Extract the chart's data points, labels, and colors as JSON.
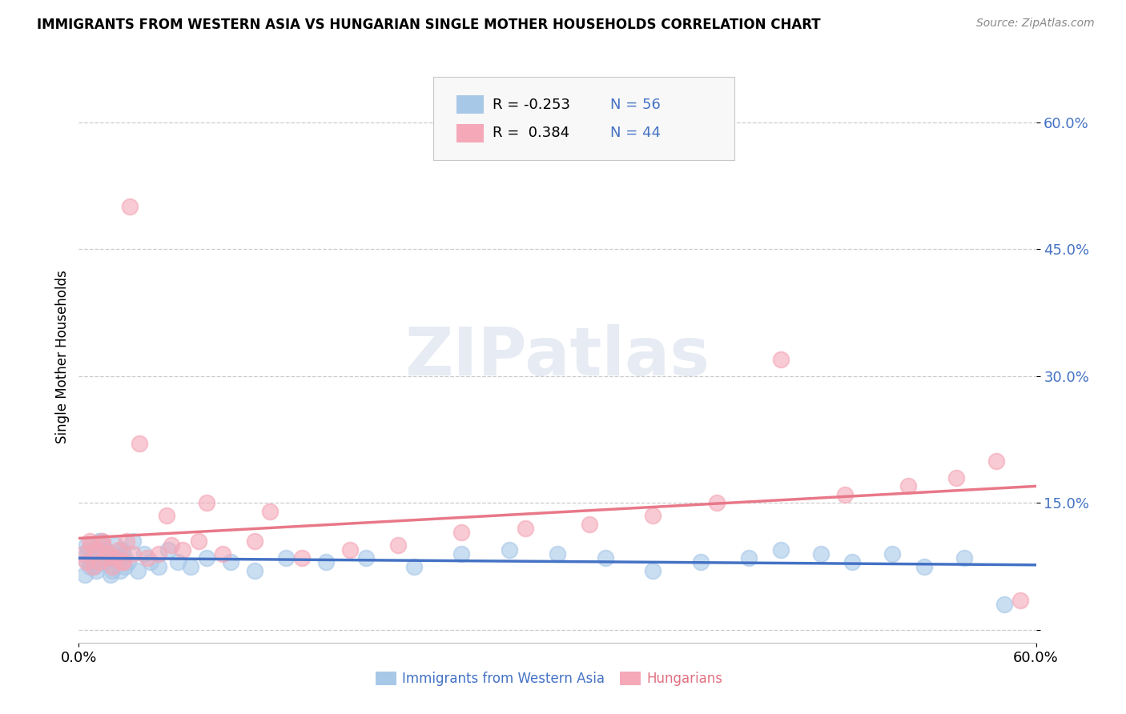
{
  "title": "IMMIGRANTS FROM WESTERN ASIA VS HUNGARIAN SINGLE MOTHER HOUSEHOLDS CORRELATION CHART",
  "source": "Source: ZipAtlas.com",
  "ylabel": "Single Mother Households",
  "xlim": [
    0.0,
    60.0
  ],
  "ylim": [
    -1.5,
    66.0
  ],
  "yticks": [
    0.0,
    15.0,
    30.0,
    45.0,
    60.0
  ],
  "ytick_labels": [
    "",
    "15.0%",
    "30.0%",
    "45.0%",
    "60.0%"
  ],
  "xticks": [
    0.0,
    60.0
  ],
  "xtick_labels": [
    "0.0%",
    "60.0%"
  ],
  "color_blue": "#a8c8e8",
  "color_pink": "#f4a8b8",
  "color_blue_text": "#4472c4",
  "color_pink_text": "#e07080",
  "trend_blue": "#4472c4",
  "trend_pink": "#e8708080",
  "watermark_color": "#d0d8e8",
  "grid_color": "#cccccc",
  "bg_color": "#ffffff",
  "legend_bg": "#f8f8f8",
  "legend_border": "#c8c8c8",
  "blue_scatter_x": [
    0.3,
    0.5,
    0.7,
    0.9,
    1.1,
    1.3,
    1.5,
    1.7,
    1.9,
    2.1,
    2.3,
    2.5,
    2.7,
    2.9,
    3.1,
    3.4,
    3.7,
    4.1,
    4.5,
    5.0,
    5.6,
    6.2,
    7.0,
    8.0,
    9.5,
    11.0,
    13.0,
    15.5,
    18.0,
    21.0,
    24.0,
    27.0,
    30.0,
    33.0,
    36.0,
    39.0,
    42.0,
    44.0,
    46.5,
    48.5,
    51.0,
    53.0,
    55.5,
    58.0,
    0.4,
    0.6,
    0.8,
    1.0,
    1.2,
    1.4,
    1.6,
    1.8,
    2.0,
    2.4,
    2.6,
    2.8
  ],
  "blue_scatter_y": [
    8.5,
    10.0,
    7.5,
    9.0,
    7.0,
    10.5,
    8.0,
    9.5,
    8.5,
    7.0,
    10.0,
    8.5,
    9.5,
    7.5,
    8.0,
    10.5,
    7.0,
    9.0,
    8.0,
    7.5,
    9.5,
    8.0,
    7.5,
    8.5,
    8.0,
    7.0,
    8.5,
    8.0,
    8.5,
    7.5,
    9.0,
    9.5,
    9.0,
    8.5,
    7.0,
    8.0,
    8.5,
    9.5,
    9.0,
    8.0,
    9.0,
    7.5,
    8.5,
    3.0,
    6.5,
    9.5,
    8.0,
    7.5,
    9.0,
    10.5,
    8.0,
    9.0,
    6.5,
    8.5,
    7.0,
    9.0
  ],
  "pink_scatter_x": [
    0.3,
    0.5,
    0.7,
    0.9,
    1.1,
    1.3,
    1.5,
    1.7,
    1.9,
    2.1,
    2.3,
    2.5,
    2.7,
    3.0,
    3.4,
    3.8,
    4.3,
    5.0,
    5.8,
    6.5,
    7.5,
    9.0,
    11.0,
    14.0,
    17.0,
    20.0,
    24.0,
    28.0,
    32.0,
    36.0,
    40.0,
    44.0,
    48.0,
    52.0,
    55.0,
    57.5,
    3.2,
    5.5,
    8.0,
    12.0,
    0.8,
    1.5,
    2.8,
    59.0
  ],
  "pink_scatter_y": [
    9.0,
    8.0,
    10.5,
    7.5,
    9.5,
    8.0,
    10.0,
    8.5,
    9.0,
    7.5,
    8.5,
    9.5,
    8.0,
    10.5,
    9.0,
    22.0,
    8.5,
    9.0,
    10.0,
    9.5,
    10.5,
    9.0,
    10.5,
    8.5,
    9.5,
    10.0,
    11.5,
    12.0,
    12.5,
    13.5,
    15.0,
    32.0,
    16.0,
    17.0,
    18.0,
    20.0,
    50.0,
    13.5,
    15.0,
    14.0,
    10.0,
    10.5,
    8.0,
    3.5
  ]
}
